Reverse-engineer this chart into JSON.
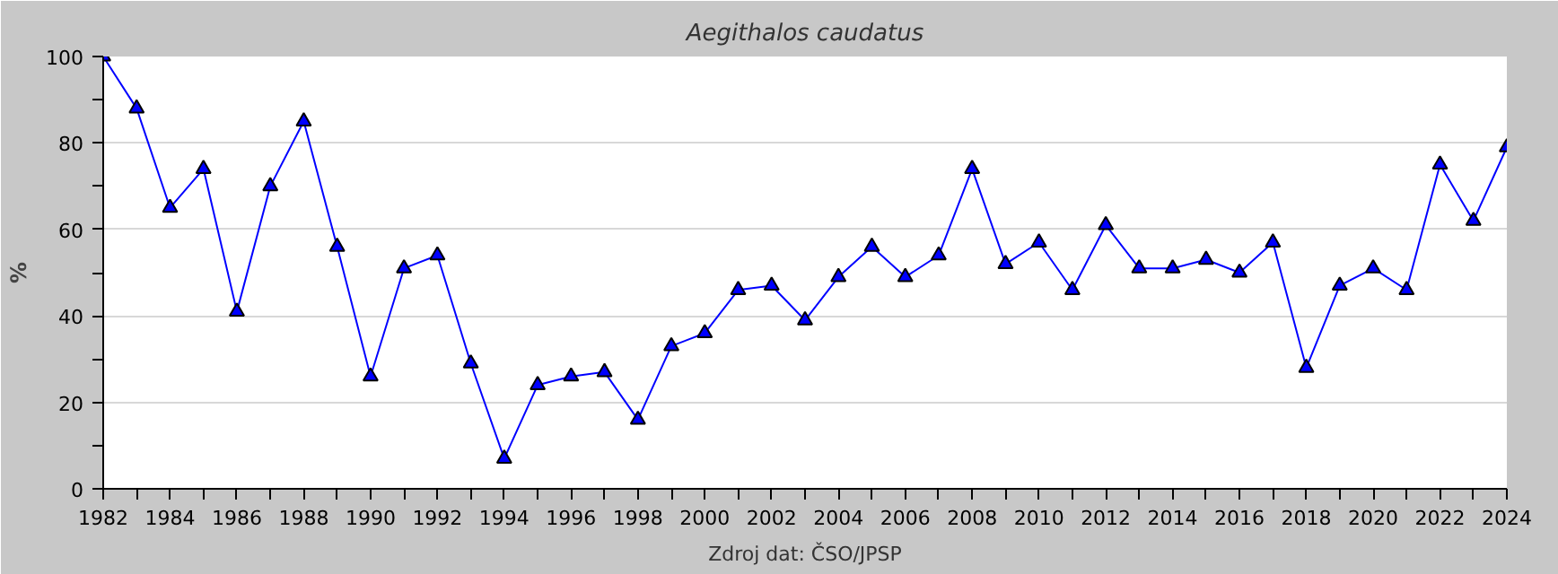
{
  "chart_data": {
    "type": "line",
    "title": "Aegithalos caudatus",
    "ylabel": "%",
    "annotations": [
      "Zdroj dat: ČSO/JPSP"
    ],
    "x": [
      1982,
      1983,
      1984,
      1985,
      1986,
      1987,
      1988,
      1989,
      1990,
      1991,
      1992,
      1993,
      1994,
      1995,
      1996,
      1997,
      1998,
      1999,
      2000,
      2001,
      2002,
      2003,
      2004,
      2005,
      2006,
      2007,
      2008,
      2009,
      2010,
      2011,
      2012,
      2013,
      2014,
      2015,
      2016,
      2017,
      2018,
      2019,
      2020,
      2021,
      2022,
      2023,
      2024
    ],
    "series": [
      {
        "color": "#0000ff",
        "values": [
          100,
          88,
          65,
          74,
          41,
          70,
          85,
          56,
          26,
          51,
          54,
          29,
          7,
          24,
          26,
          27,
          16,
          33,
          36,
          46,
          47,
          39,
          49,
          56,
          49,
          54,
          74,
          52,
          57,
          46,
          61,
          51,
          51,
          53,
          50,
          57,
          28,
          47,
          51,
          46,
          75,
          62,
          79
        ]
      }
    ],
    "xlim": [
      1982,
      2024
    ],
    "xticks": [
      1982,
      {
        "value": 1983,
        "label": null
      },
      1984,
      {
        "value": 1985,
        "label": null
      },
      1986,
      {
        "value": 1987,
        "label": null
      },
      1988,
      {
        "value": 1989,
        "label": null
      },
      1990,
      {
        "value": 1991,
        "label": null
      },
      1992,
      {
        "value": 1993,
        "label": null
      },
      1994,
      {
        "value": 1995,
        "label": null
      },
      1996,
      {
        "value": 1997,
        "label": null
      },
      1998,
      {
        "value": 1999,
        "label": null
      },
      2000,
      {
        "value": 2001,
        "label": null
      },
      2002,
      {
        "value": 2003,
        "label": null
      },
      2004,
      {
        "value": 2005,
        "label": null
      },
      2006,
      {
        "value": 2007,
        "label": null
      },
      2008,
      {
        "value": 2009,
        "label": null
      },
      2010,
      {
        "value": 2011,
        "label": null
      },
      2012,
      {
        "value": 2013,
        "label": null
      },
      2014,
      {
        "value": 2015,
        "label": null
      },
      2016,
      {
        "value": 2017,
        "label": null
      },
      2018,
      {
        "value": 2019,
        "label": null
      },
      2020,
      {
        "value": 2021,
        "label": null
      },
      2022,
      {
        "value": 2023,
        "label": null
      },
      2024
    ],
    "ylim": [
      0,
      100
    ],
    "yticks": [
      0,
      {
        "value": 10,
        "label": null
      },
      20,
      {
        "value": 30,
        "label": null
      },
      40,
      {
        "value": 50,
        "label": null
      },
      60,
      {
        "value": 70,
        "label": null
      },
      80,
      {
        "value": 90,
        "label": null
      },
      100
    ],
    "grid": "y",
    "marker": "triangle",
    "line_style": "solid"
  }
}
